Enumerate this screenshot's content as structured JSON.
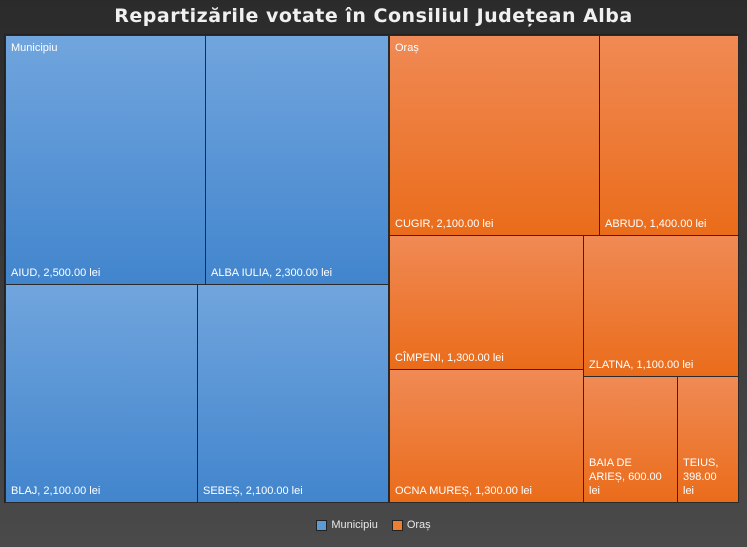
{
  "chart_data": {
    "type": "treemap",
    "title": "Repartizările votate în Consiliul Județean Alba",
    "unit": "lei",
    "groups": [
      {
        "name": "Municipiu",
        "color": "#5b9bd5",
        "items": [
          {
            "label": "AIUD, 2,500.00 lei",
            "value": 2500
          },
          {
            "label": "ALBA IULIA, 2,300.00 lei",
            "value": 2300
          },
          {
            "label": "BLAJ, 2,100.00 lei",
            "value": 2100
          },
          {
            "label": "SEBEȘ, 2,100.00 lei",
            "value": 2100
          }
        ]
      },
      {
        "name": "Oraș",
        "color": "#ed7d31",
        "items": [
          {
            "label": "CUGIR, 2,100.00 lei",
            "value": 2100
          },
          {
            "label": "ABRUD, 1,400.00 lei",
            "value": 1400
          },
          {
            "label": "CÎMPENI, 1,300.00 lei",
            "value": 1300
          },
          {
            "label": "ZLATNA, 1,100.00 lei",
            "value": 1100
          },
          {
            "label": "OCNA MUREȘ, 1,300.00 lei",
            "value": 1300
          },
          {
            "label": "BAIA DE ARIEȘ, 600.00 lei",
            "value": 600
          },
          {
            "label": "TEIUS, 398.00 lei",
            "value": 398
          }
        ]
      }
    ],
    "legend": [
      "Municipiu",
      "Oraș"
    ],
    "legend_position": "bottom"
  }
}
